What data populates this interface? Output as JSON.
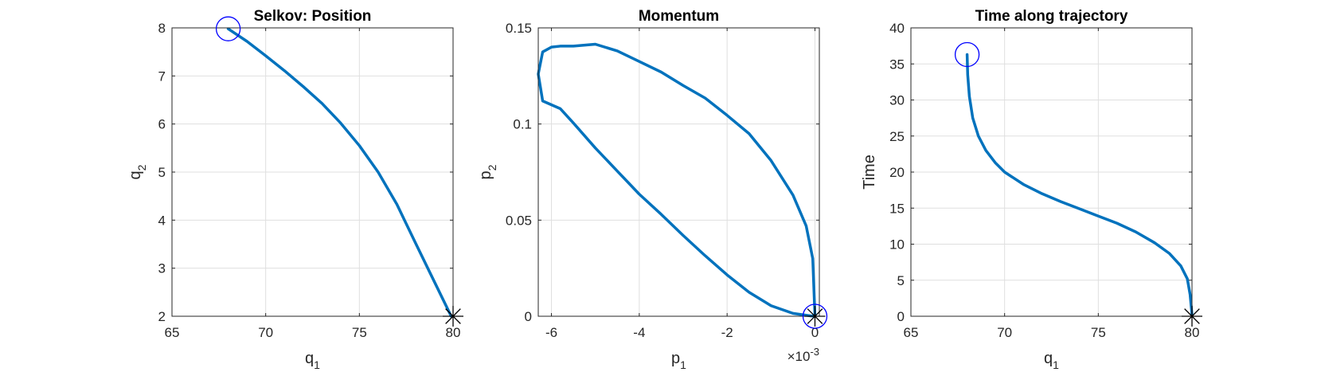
{
  "chart_data": [
    {
      "type": "line",
      "title": "Selkov: Position",
      "xlabel": "q",
      "xlabel_sub": "1",
      "ylabel": "q",
      "ylabel_sub": "2",
      "xlim": [
        65,
        80
      ],
      "ylim": [
        2,
        8
      ],
      "xticks": [
        65,
        70,
        75,
        80
      ],
      "yticks": [
        2,
        3,
        4,
        5,
        6,
        7,
        8
      ],
      "xtick_labels": [
        "65",
        "70",
        "75",
        "80"
      ],
      "ytick_labels": [
        "2",
        "3",
        "4",
        "5",
        "6",
        "7",
        "8"
      ],
      "grid": true,
      "series": [
        {
          "color": "#0072BD",
          "x": [
            68.0,
            69.0,
            70.0,
            71.0,
            72.0,
            73.0,
            74.0,
            75.0,
            76.0,
            77.0,
            78.0,
            79.0,
            79.9
          ],
          "y": [
            7.98,
            7.72,
            7.42,
            7.11,
            6.78,
            6.43,
            6.02,
            5.55,
            5.0,
            4.33,
            3.52,
            2.72,
            2.0
          ]
        }
      ],
      "start_marker": {
        "shape": "circle",
        "color": "#0000ff",
        "x": 68.0,
        "y": 7.98
      },
      "end_marker": {
        "shape": "asterisk",
        "color": "#000000",
        "x": 80.0,
        "y": 2.0
      }
    },
    {
      "type": "line",
      "title": "Momentum",
      "xlabel": "p",
      "xlabel_sub": "1",
      "ylabel": "p",
      "ylabel_sub": "2",
      "xlim": [
        -0.0063,
        0.0001
      ],
      "ylim": [
        0,
        0.15
      ],
      "xticks": [
        -0.006,
        -0.004,
        -0.002,
        0
      ],
      "yticks": [
        0,
        0.05,
        0.1,
        0.15
      ],
      "xtick_labels": [
        "-6",
        "-4",
        "-2",
        "0"
      ],
      "ytick_labels": [
        "0",
        "0.05",
        "0.1",
        "0.15"
      ],
      "x_exponent_base": "×10",
      "x_exponent_power": "-3",
      "grid": true,
      "series": [
        {
          "color": "#0072BD",
          "x": [
            0.0,
            -5e-05,
            -0.0002,
            -0.0005,
            -0.001,
            -0.0015,
            -0.002,
            -0.0025,
            -0.003,
            -0.0035,
            -0.004,
            -0.0045,
            -0.005,
            -0.0055,
            -0.0058,
            -0.006,
            -0.0062,
            -0.0063,
            -0.0062,
            -0.0058,
            -0.0055,
            -0.005,
            -0.0045,
            -0.004,
            -0.0035,
            -0.003,
            -0.0025,
            -0.002,
            -0.0015,
            -0.001,
            -0.0005,
            -0.0001,
            0.0
          ],
          "y": [
            0.0,
            0.03,
            0.047,
            0.063,
            0.081,
            0.095,
            0.1045,
            0.1135,
            0.12,
            0.127,
            0.1325,
            0.138,
            0.1415,
            0.1405,
            0.1405,
            0.14,
            0.1375,
            0.126,
            0.112,
            0.108,
            0.1005,
            0.0875,
            0.0755,
            0.0635,
            0.053,
            0.042,
            0.0315,
            0.0215,
            0.0125,
            0.0055,
            0.0015,
            0.0002,
            0.0
          ]
        }
      ],
      "start_marker": {
        "shape": "circle",
        "color": "#0000ff",
        "x": 0.0,
        "y": 0.0
      },
      "end_marker": {
        "shape": "asterisk",
        "color": "#000000",
        "x": 0.0,
        "y": 0.0
      }
    },
    {
      "type": "line",
      "title": "Time along trajectory",
      "xlabel": "q",
      "xlabel_sub": "1",
      "ylabel": "Time",
      "xlim": [
        65,
        80
      ],
      "ylim": [
        0,
        40
      ],
      "xticks": [
        65,
        70,
        75,
        80
      ],
      "yticks": [
        0,
        5,
        10,
        15,
        20,
        25,
        30,
        35,
        40
      ],
      "xtick_labels": [
        "65",
        "70",
        "75",
        "80"
      ],
      "ytick_labels": [
        "0",
        "5",
        "10",
        "15",
        "20",
        "25",
        "30",
        "35",
        "40"
      ],
      "grid": true,
      "series": [
        {
          "color": "#0072BD",
          "x": [
            68.0,
            68.03,
            68.12,
            68.3,
            68.6,
            69.0,
            69.5,
            70.0,
            71.0,
            72.0,
            73.0,
            74.0,
            75.0,
            76.0,
            77.0,
            78.0,
            78.8,
            79.4,
            79.75,
            79.9,
            80.0
          ],
          "y": [
            36.3,
            33.5,
            30.5,
            27.5,
            25.0,
            23.0,
            21.3,
            20.0,
            18.3,
            17.0,
            15.9,
            14.9,
            13.9,
            12.9,
            11.7,
            10.2,
            8.7,
            7.0,
            5.2,
            3.0,
            0.2
          ]
        }
      ],
      "start_marker": {
        "shape": "circle",
        "color": "#0000ff",
        "x": 68.0,
        "y": 36.3
      },
      "end_marker": {
        "shape": "asterisk",
        "color": "#000000",
        "x": 80.0,
        "y": 0.0
      }
    }
  ]
}
